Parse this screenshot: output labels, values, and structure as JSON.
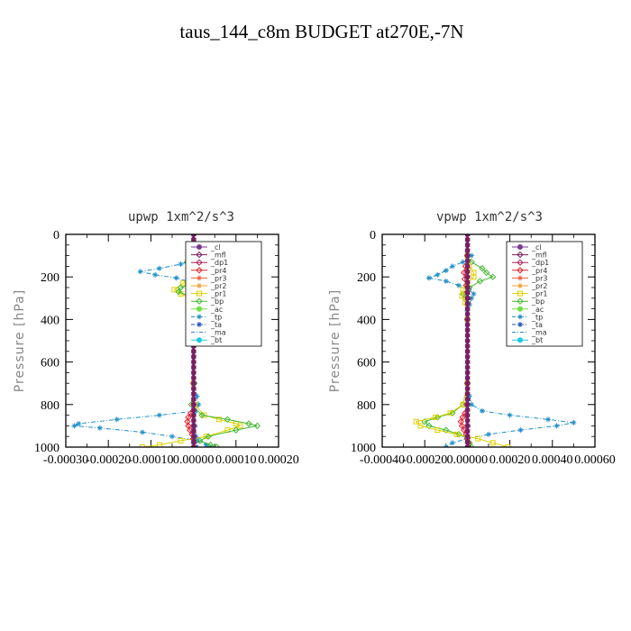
{
  "title": "taus_144_c8m  BUDGET at270E,-7N",
  "chart_data": [
    {
      "type": "line",
      "title": "upwp   1xm^2/s^3",
      "ylabel": "Pressure [hPa]",
      "xlabel": "",
      "xlim": [
        -0.0003,
        0.0002
      ],
      "ylim": [
        0,
        1000
      ],
      "y_inverted": true,
      "xtick_labels": [
        "-0.00030",
        "-0.00020",
        "-0.00010",
        "0.00000",
        "0.00010",
        "0.00020"
      ],
      "xtick_values": [
        -0.0003,
        -0.0002,
        -0.0001,
        0.0,
        0.0001,
        0.0002
      ],
      "ytick_labels": [
        "0",
        "200",
        "400",
        "600",
        "800",
        "1000"
      ],
      "ytick_values": [
        0,
        200,
        400,
        600,
        800,
        1000
      ],
      "legend": [
        "_cl",
        "_mfl",
        "_dp1",
        "_pr4",
        "_pr3",
        "_pr2",
        "_pr1",
        "_bp",
        "_ac",
        "_tp",
        "_ta",
        "_ma",
        "_bt"
      ],
      "series": [
        {
          "name": "_tp",
          "color": "#1f8fc8",
          "marker": "star",
          "style": "dashdot",
          "p": [
            80,
            100,
            120,
            140,
            160,
            175,
            190,
            205,
            220,
            240,
            260,
            280,
            300,
            330,
            360,
            400,
            700,
            760,
            800,
            830,
            850,
            870,
            890,
            900,
            910,
            930,
            950,
            970,
            990,
            1000
          ],
          "v": [
            -2e-06,
            6e-06,
            4e-06,
            -3e-05,
            -8e-05,
            -0.000125,
            -9e-05,
            -4e-05,
            -1.5e-05,
            -1.2e-05,
            6e-06,
            5e-06,
            -3e-06,
            2e-06,
            0.0,
            -2e-06,
            2e-06,
            8e-06,
            1.2e-05,
            5e-06,
            -8e-05,
            -0.00018,
            -0.00027,
            -0.00028,
            -0.00022,
            -0.00012,
            -5e-05,
            1e-05,
            3e-05,
            4e-05
          ]
        },
        {
          "name": "_pr1",
          "color": "#ddd000",
          "marker": "square",
          "style": "solid",
          "p": [
            100,
            150,
            180,
            200,
            230,
            260,
            280,
            300,
            400,
            700,
            800,
            850,
            870,
            890,
            900,
            920,
            950,
            970,
            990,
            1000
          ],
          "v": [
            -3e-06,
            -8e-06,
            1.2e-05,
            2e-05,
            -2.5e-05,
            -4.5e-05,
            -3e-05,
            -5e-06,
            -3e-06,
            0.0,
            3e-06,
            2.5e-05,
            6e-05,
            0.0001,
            0.00011,
            8e-05,
            3e-05,
            -3e-05,
            -8e-05,
            -0.00012
          ]
        },
        {
          "name": "_bp",
          "color": "#44b832",
          "marker": "diamond",
          "style": "solid",
          "p": [
            100,
            130,
            160,
            180,
            200,
            230,
            250,
            270,
            290,
            310,
            400,
            700,
            800,
            850,
            870,
            890,
            900,
            920,
            950,
            970,
            990,
            1000
          ],
          "v": [
            -2e-06,
            -1.5e-05,
            1e-05,
            3.2e-05,
            2.5e-05,
            5e-06,
            -3e-05,
            -3.5e-05,
            -1e-05,
            2e-06,
            0.0,
            2e-06,
            -5e-06,
            2e-05,
            8e-05,
            0.00013,
            0.00015,
            0.0001,
            3.5e-05,
            1.5e-05,
            4e-05,
            5.5e-05
          ]
        },
        {
          "name": "_pr4",
          "color": "#e0202a",
          "marker": "diamond",
          "style": "solid",
          "p": [
            100,
            150,
            170,
            190,
            210,
            230,
            260,
            300,
            400,
            700,
            800,
            840,
            860,
            880,
            900,
            920,
            940,
            960,
            980,
            1000
          ],
          "v": [
            0.0,
            6e-06,
            1e-05,
            1e-05,
            5e-06,
            2e-06,
            -2e-06,
            -3e-06,
            0.0,
            0.0,
            0.0,
            -6e-06,
            -1.2e-05,
            -1.4e-05,
            -1.2e-05,
            -8e-06,
            -3e-06,
            0.0,
            1e-06,
            2e-06
          ]
        },
        {
          "name": "_ma",
          "color": "#2a78c8",
          "marker": "star",
          "style": "dashdot",
          "p": [
            100,
            200,
            400,
            700,
            800,
            900,
            950,
            1000
          ],
          "v": [
            2e-06,
            2e-06,
            1e-06,
            1e-06,
            2e-06,
            4e-06,
            6e-06,
            8e-06
          ]
        },
        {
          "name": "_cl",
          "color": "#7a3a92",
          "marker": "none",
          "style": "solid",
          "width": 3.5,
          "p": [
            0,
            1000
          ],
          "v": [
            0.0,
            0.0
          ]
        },
        {
          "name": "_mfl",
          "color": "#7a1f5c",
          "marker": "none",
          "style": "solid",
          "width": 2,
          "p": [
            0,
            1000
          ],
          "v": [
            1e-06,
            1e-06
          ]
        }
      ]
    },
    {
      "type": "line",
      "title": "vpwp   1xm^2/s^3",
      "ylabel": "Pressure [hPa]",
      "xlabel": "",
      "xlim": [
        -0.0004,
        0.0006
      ],
      "ylim": [
        0,
        1000
      ],
      "y_inverted": true,
      "xtick_labels": [
        "-0.00040",
        "-0.00020",
        "0.00000",
        "0.00020",
        "0.00040",
        "0.00060"
      ],
      "xtick_values": [
        -0.0004,
        -0.0002,
        0.0,
        0.0002,
        0.0004,
        0.0006
      ],
      "ytick_labels": [
        "0",
        "200",
        "400",
        "600",
        "800",
        "1000"
      ],
      "ytick_values": [
        0,
        200,
        400,
        600,
        800,
        1000
      ],
      "legend": [
        "_cl",
        "_mfl",
        "_dp1",
        "_pr4",
        "_pr3",
        "_pr2",
        "_pr1",
        "_bp",
        "_ac",
        "_tp",
        "_ta",
        "_ma",
        "_bt"
      ],
      "series": [
        {
          "name": "_tp",
          "color": "#1f8fc8",
          "marker": "star",
          "style": "dashdot",
          "p": [
            80,
            100,
            130,
            150,
            170,
            190,
            205,
            220,
            240,
            260,
            280,
            300,
            330,
            360,
            400,
            700,
            760,
            800,
            830,
            850,
            870,
            885,
            900,
            920,
            940,
            960,
            980,
            1000
          ],
          "v": [
            0.0,
            2e-05,
            -2e-05,
            -7e-05,
            -0.0001,
            -0.00014,
            -0.00018,
            -0.0001,
            -4e-05,
            1e-05,
            3e-05,
            2e-05,
            1e-05,
            0.0,
            0.0,
            0.0,
            1e-05,
            2e-05,
            7e-05,
            0.0002,
            0.00038,
            0.0005,
            0.00042,
            0.00025,
            0.0001,
            0.0,
            -7e-05,
            -0.0001
          ]
        },
        {
          "name": "_bp",
          "color": "#44b832",
          "marker": "diamond",
          "style": "solid",
          "p": [
            100,
            130,
            160,
            180,
            200,
            220,
            250,
            280,
            300,
            330,
            400,
            700,
            800,
            840,
            860,
            880,
            900,
            920,
            940,
            960,
            980,
            1000
          ],
          "v": [
            0.0,
            2e-05,
            7e-05,
            9e-05,
            0.00012,
            6e-05,
            1e-05,
            -2e-05,
            -1e-05,
            0.0,
            0.0,
            0.0,
            -2e-05,
            -7e-05,
            -0.00014,
            -0.0002,
            -0.00018,
            -0.0001,
            -4e-05,
            0.0,
            1e-05,
            2e-05
          ]
        },
        {
          "name": "_pr1",
          "color": "#ddd000",
          "marker": "square",
          "style": "solid",
          "p": [
            100,
            150,
            180,
            200,
            230,
            260,
            290,
            320,
            400,
            700,
            800,
            840,
            860,
            880,
            900,
            920,
            940,
            960,
            980,
            1000
          ],
          "v": [
            0.0,
            1e-05,
            3e-05,
            3e-05,
            0.0,
            -2e-05,
            -2.5e-05,
            -1e-05,
            0.0,
            0.0,
            -2e-05,
            -8e-05,
            -0.00015,
            -0.00024,
            -0.00022,
            -0.00014,
            -5e-05,
            5e-05,
            0.00012,
            0.00019
          ]
        },
        {
          "name": "_pr4",
          "color": "#e0202a",
          "marker": "diamond",
          "style": "solid",
          "p": [
            100,
            150,
            180,
            210,
            240,
            270,
            300,
            400,
            700,
            800,
            840,
            860,
            880,
            900,
            920,
            940,
            960,
            980,
            1000
          ],
          "v": [
            0.0,
            -8e-06,
            -1.5e-05,
            -1.2e-05,
            -5e-06,
            0.0,
            3e-06,
            0.0,
            0.0,
            -3e-06,
            -1e-05,
            -2.2e-05,
            -3e-05,
            -2.5e-05,
            -1.5e-05,
            -5e-06,
            0.0,
            3e-06,
            5e-06
          ]
        },
        {
          "name": "_ma",
          "color": "#2a78c8",
          "marker": "star",
          "style": "dashdot",
          "p": [
            100,
            200,
            400,
            700,
            800,
            900,
            1000
          ],
          "v": [
            3e-06,
            2e-06,
            1e-06,
            1e-06,
            2e-06,
            4e-06,
            6e-06
          ]
        },
        {
          "name": "_cl",
          "color": "#7a3a92",
          "marker": "none",
          "style": "solid",
          "width": 3.5,
          "p": [
            0,
            1000
          ],
          "v": [
            0.0,
            0.0
          ]
        },
        {
          "name": "_mfl",
          "color": "#7a1f5c",
          "marker": "none",
          "style": "solid",
          "width": 2,
          "p": [
            0,
            1000
          ],
          "v": [
            2e-06,
            2e-06
          ]
        }
      ]
    }
  ],
  "legend_style": [
    {
      "name": "_cl",
      "color": "#7a3a92",
      "marker": "circle",
      "dash": ""
    },
    {
      "name": "_mfl",
      "color": "#7a1f5c",
      "marker": "diamond",
      "dash": ""
    },
    {
      "name": "_dp1",
      "color": "#b0205a",
      "marker": "diamond",
      "dash": ""
    },
    {
      "name": "_pr4",
      "color": "#e0202a",
      "marker": "diamond",
      "dash": ""
    },
    {
      "name": "_pr3",
      "color": "#f05a3a",
      "marker": "star",
      "dash": ""
    },
    {
      "name": "_pr2",
      "color": "#f0a030",
      "marker": "star",
      "dash": ""
    },
    {
      "name": "_pr1",
      "color": "#ddd000",
      "marker": "square",
      "dash": ""
    },
    {
      "name": "_bp",
      "color": "#44b832",
      "marker": "diamond",
      "dash": ""
    },
    {
      "name": "_ac",
      "color": "#70e040",
      "marker": "circle",
      "dash": ""
    },
    {
      "name": "_tp",
      "color": "#1f8fc8",
      "marker": "star",
      "dash": "4,2,1,2"
    },
    {
      "name": "_ta",
      "color": "#2050b0",
      "marker": "star",
      "dash": "4,2,1,2"
    },
    {
      "name": "_ma",
      "color": "#2a78c8",
      "marker": "none",
      "dash": "4,2,1,2"
    },
    {
      "name": "_bt",
      "color": "#20c8e0",
      "marker": "circle",
      "dash": ""
    }
  ]
}
